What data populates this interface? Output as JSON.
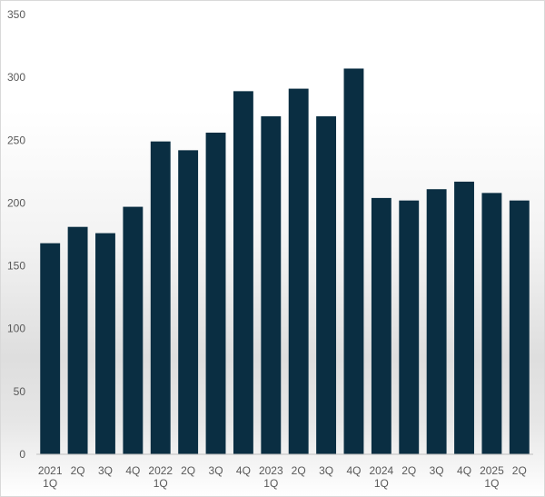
{
  "chart_data": {
    "type": "bar",
    "title": "",
    "xlabel": "",
    "ylabel": "",
    "categories": [
      {
        "quarter": "1Q",
        "year": "2021"
      },
      {
        "quarter": "2Q",
        "year": ""
      },
      {
        "quarter": "3Q",
        "year": ""
      },
      {
        "quarter": "4Q",
        "year": ""
      },
      {
        "quarter": "1Q",
        "year": "2022"
      },
      {
        "quarter": "2Q",
        "year": ""
      },
      {
        "quarter": "3Q",
        "year": ""
      },
      {
        "quarter": "4Q",
        "year": ""
      },
      {
        "quarter": "1Q",
        "year": "2023"
      },
      {
        "quarter": "2Q",
        "year": ""
      },
      {
        "quarter": "3Q",
        "year": ""
      },
      {
        "quarter": "4Q",
        "year": ""
      },
      {
        "quarter": "1Q",
        "year": "2024"
      },
      {
        "quarter": "2Q",
        "year": ""
      },
      {
        "quarter": "3Q",
        "year": ""
      },
      {
        "quarter": "4Q",
        "year": ""
      },
      {
        "quarter": "1Q",
        "year": "2025"
      },
      {
        "quarter": "2Q",
        "year": ""
      }
    ],
    "values": [
      168,
      181,
      176,
      197,
      249,
      242,
      256,
      289,
      269,
      291,
      269,
      307,
      204,
      202,
      211,
      217,
      208,
      202
    ],
    "ylim": [
      0,
      350
    ],
    "yticks": [
      0,
      50,
      100,
      150,
      200,
      250,
      300,
      350
    ],
    "grid": false,
    "legend": "none",
    "bar_color": "#0a2e42"
  }
}
